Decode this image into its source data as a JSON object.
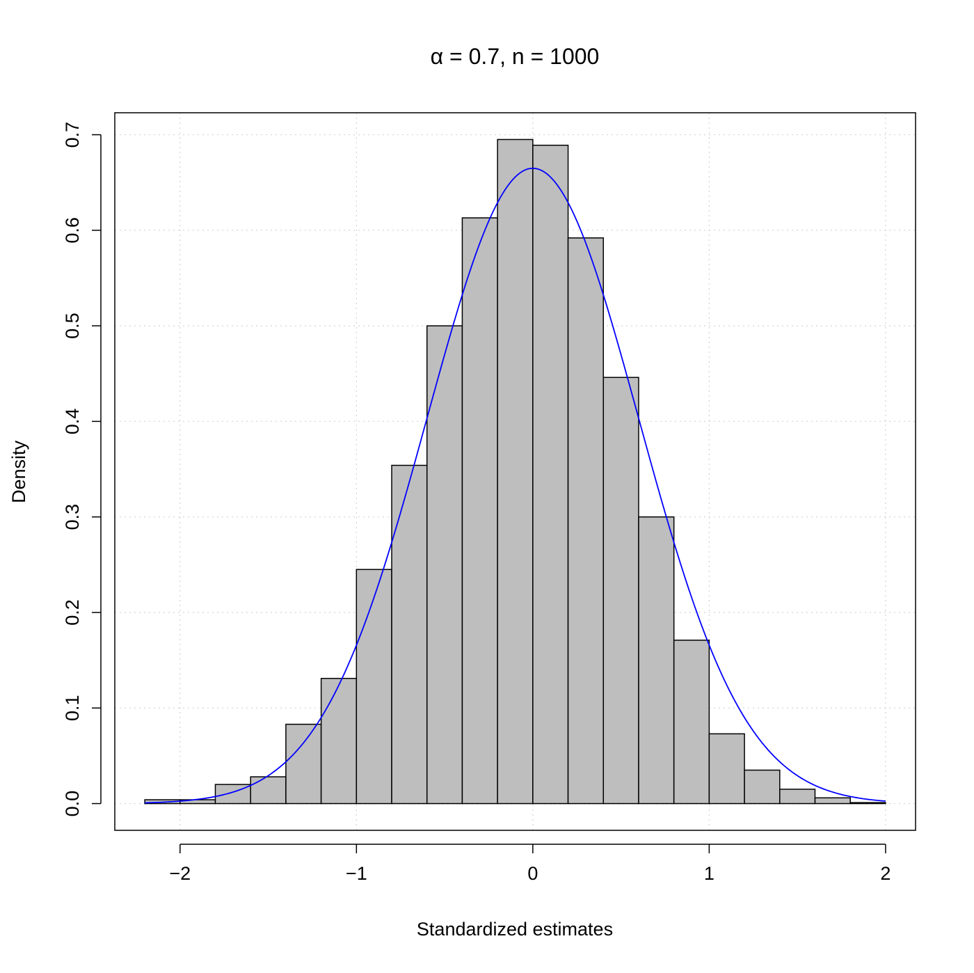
{
  "chart_data": {
    "type": "bar",
    "subtype": "histogram",
    "title": "α = 0.7, n = 1000",
    "xlabel": "Standardized estimates",
    "ylabel": "Density",
    "xlim": [
      -2.37,
      2.17
    ],
    "ylim": [
      -0.028,
      0.723
    ],
    "xticks": [
      -2,
      -1,
      0,
      1,
      2
    ],
    "xtick_labels": [
      "−2",
      "−1",
      "0",
      "1",
      "2"
    ],
    "yticks": [
      0.0,
      0.1,
      0.2,
      0.3,
      0.4,
      0.5,
      0.6,
      0.7
    ],
    "ytick_labels": [
      "0.0",
      "0.1",
      "0.2",
      "0.3",
      "0.4",
      "0.5",
      "0.6",
      "0.7"
    ],
    "grid": true,
    "bin_edges": [
      -2.2,
      -2.0,
      -1.8,
      -1.6,
      -1.4,
      -1.2,
      -1.0,
      -0.8,
      -0.6,
      -0.4,
      -0.2,
      0.0,
      0.2,
      0.4,
      0.6,
      0.8,
      1.0,
      1.2,
      1.4,
      1.6,
      1.8,
      2.0
    ],
    "values": [
      0.004,
      0.004,
      0.02,
      0.028,
      0.083,
      0.131,
      0.245,
      0.354,
      0.5,
      0.613,
      0.695,
      0.689,
      0.592,
      0.446,
      0.3,
      0.171,
      0.073,
      0.035,
      0.015,
      0.006,
      0.001
    ],
    "bar_color": "#bebebe",
    "density_curve": {
      "distribution": "normal",
      "mean": 0.0,
      "sd": 0.6,
      "x_range": [
        -2.2,
        2.0
      ],
      "color": "#0000ff"
    }
  }
}
